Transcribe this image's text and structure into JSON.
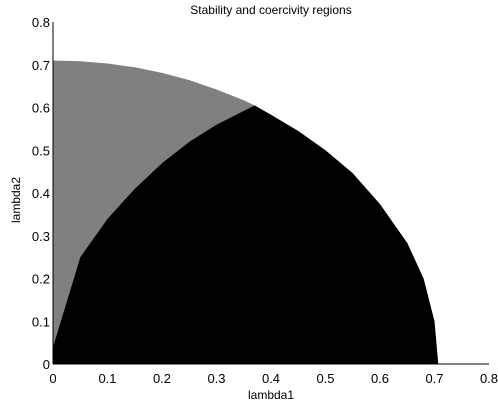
{
  "chart_data": {
    "type": "area",
    "title": "Stability and coercivity regions",
    "xlabel": "lambda1",
    "ylabel": "lambda2",
    "xlim": [
      0,
      0.8
    ],
    "ylim": [
      0,
      0.8
    ],
    "xticks": [
      "0",
      "0.1",
      "0.2",
      "0.3",
      "0.4",
      "0.5",
      "0.6",
      "0.7",
      "0.8"
    ],
    "yticks": [
      "0",
      "0.1",
      "0.2",
      "0.3",
      "0.4",
      "0.5",
      "0.6",
      "0.7",
      "0.8"
    ],
    "grid": false,
    "regions": [
      {
        "fill": "#808080",
        "x": [
          0,
          0.05,
          0.1,
          0.15,
          0.2,
          0.25,
          0.3,
          0.35,
          0.37,
          0.37,
          0.3,
          0.25,
          0.2,
          0.15,
          0.1,
          0.05,
          0.0
        ],
        "y": [
          0.71,
          0.708,
          0.703,
          0.694,
          0.681,
          0.664,
          0.642,
          0.617,
          0.605,
          0.605,
          0.56,
          0.52,
          0.47,
          0.41,
          0.34,
          0.25,
          0.04
        ]
      },
      {
        "fill": "#000000",
        "x": [
          0,
          0.05,
          0.1,
          0.15,
          0.2,
          0.25,
          0.3,
          0.37,
          0.4,
          0.45,
          0.5,
          0.55,
          0.6,
          0.65,
          0.68,
          0.7,
          0.707,
          0.0
        ],
        "y": [
          0.04,
          0.25,
          0.34,
          0.41,
          0.47,
          0.52,
          0.56,
          0.605,
          0.583,
          0.545,
          0.5,
          0.446,
          0.374,
          0.283,
          0.2,
          0.1,
          0.0,
          0.0
        ]
      }
    ]
  }
}
